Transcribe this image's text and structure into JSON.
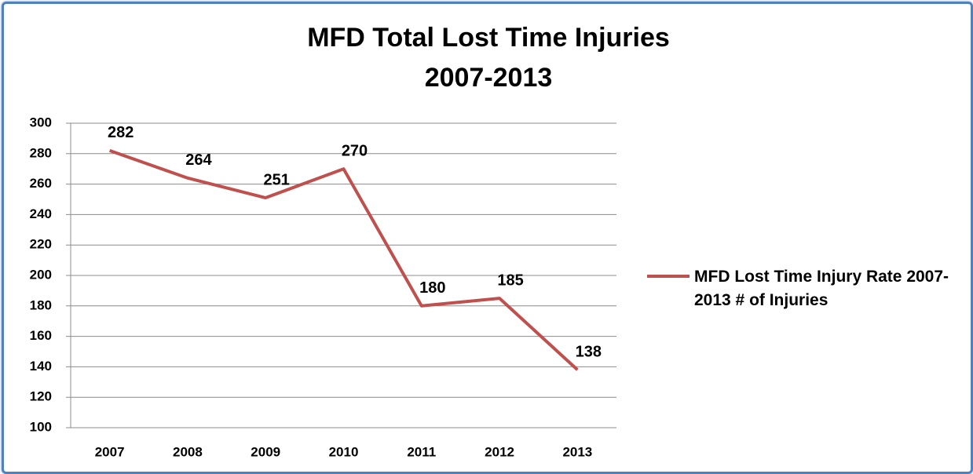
{
  "chart_data": {
    "type": "line",
    "title": [
      "MFD Total Lost Time Injuries",
      "2007-2013"
    ],
    "categories": [
      "2007",
      "2008",
      "2009",
      "2010",
      "2011",
      "2012",
      "2013"
    ],
    "series": [
      {
        "name": "MFD Lost Time Injury Rate 2007-2013 # of Injuries",
        "color": "#c0504d",
        "values": [
          282,
          264,
          251,
          270,
          180,
          185,
          138
        ]
      }
    ],
    "ylim": [
      100,
      300
    ],
    "yticks": [
      100,
      120,
      140,
      160,
      180,
      200,
      220,
      240,
      260,
      280,
      300
    ],
    "grid": true,
    "legend": "right"
  }
}
